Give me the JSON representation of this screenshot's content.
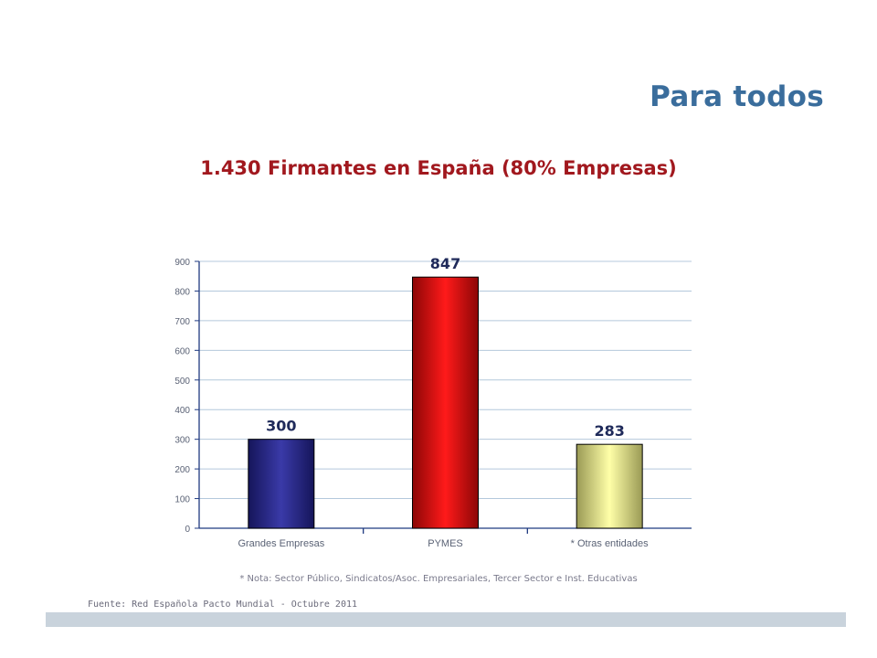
{
  "slide_title": "Para todos",
  "chart_data": {
    "type": "bar",
    "title": "1.430 Firmantes en España (80% Empresas)",
    "categories": [
      "Grandes Empresas",
      "PYMES",
      "* Otras entidades"
    ],
    "values": [
      300,
      847,
      283
    ],
    "data_labels": [
      "300",
      "847",
      "283"
    ],
    "ylim": [
      0,
      900
    ],
    "yticks": [
      0,
      100,
      200,
      300,
      400,
      500,
      600,
      700,
      800,
      900
    ],
    "grid": true,
    "xlabel": "",
    "ylabel": "",
    "bar_colors": [
      "#2e2e8c",
      "#e01414",
      "#f2f29a"
    ]
  },
  "note": "* Nota: Sector Público, Sindicatos/Asoc. Empresariales, Tercer Sector e Inst. Educativas",
  "source": "Fuente: Red Española Pacto Mundial - Octubre 2011"
}
